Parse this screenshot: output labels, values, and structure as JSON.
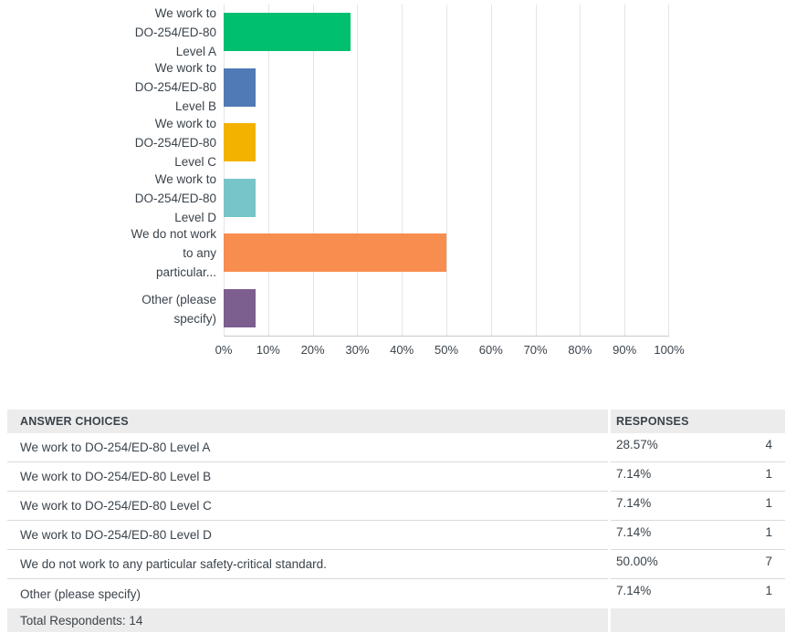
{
  "chart_data": {
    "type": "bar",
    "orientation": "horizontal",
    "title": "",
    "xlabel": "",
    "ylabel": "",
    "categories": [
      "We work to\nDO-254/ED-80\nLevel A",
      "We work to\nDO-254/ED-80\nLevel B",
      "We work to\nDO-254/ED-80\nLevel C",
      "We work to\nDO-254/ED-80\nLevel D",
      "We do not work\nto any\nparticular...",
      "Other (please\nspecify)"
    ],
    "values": [
      28.57,
      7.14,
      7.14,
      7.14,
      50.0,
      7.14
    ],
    "bar_colors": [
      "#00BF6F",
      "#507AB5",
      "#F3B200",
      "#77C5C9",
      "#F78D4F",
      "#7D5F8F"
    ],
    "xlim": [
      0,
      100
    ],
    "x_ticks": [
      "0%",
      "10%",
      "20%",
      "30%",
      "40%",
      "50%",
      "60%",
      "70%",
      "80%",
      "90%",
      "100%"
    ],
    "grid": "vertical",
    "legend": "none"
  },
  "theme": {
    "text_color": "#3A434B",
    "grid_color": "#E4E4E4",
    "axis_color": "#C9C9C9",
    "table_header_bg": "#ECECEC",
    "table_footer_bg": "#ECECEC",
    "row_border_color": "#DADADA"
  },
  "table": {
    "header": {
      "answer": "ANSWER CHOICES",
      "responses": "RESPONSES"
    },
    "rows": [
      {
        "answer": "We work to DO-254/ED-80 Level A",
        "percent": "28.57%",
        "count": "4"
      },
      {
        "answer": "We work to DO-254/ED-80 Level B",
        "percent": "7.14%",
        "count": "1"
      },
      {
        "answer": "We work to DO-254/ED-80 Level C",
        "percent": "7.14%",
        "count": "1"
      },
      {
        "answer": "We work to DO-254/ED-80 Level D",
        "percent": "7.14%",
        "count": "1"
      },
      {
        "answer": "We do not work to any particular safety-critical standard.",
        "percent": "50.00%",
        "count": "7"
      },
      {
        "answer": "Other (please specify)",
        "percent": "7.14%",
        "count": "1"
      }
    ],
    "footer": {
      "total_label": "Total Respondents: 14"
    }
  }
}
